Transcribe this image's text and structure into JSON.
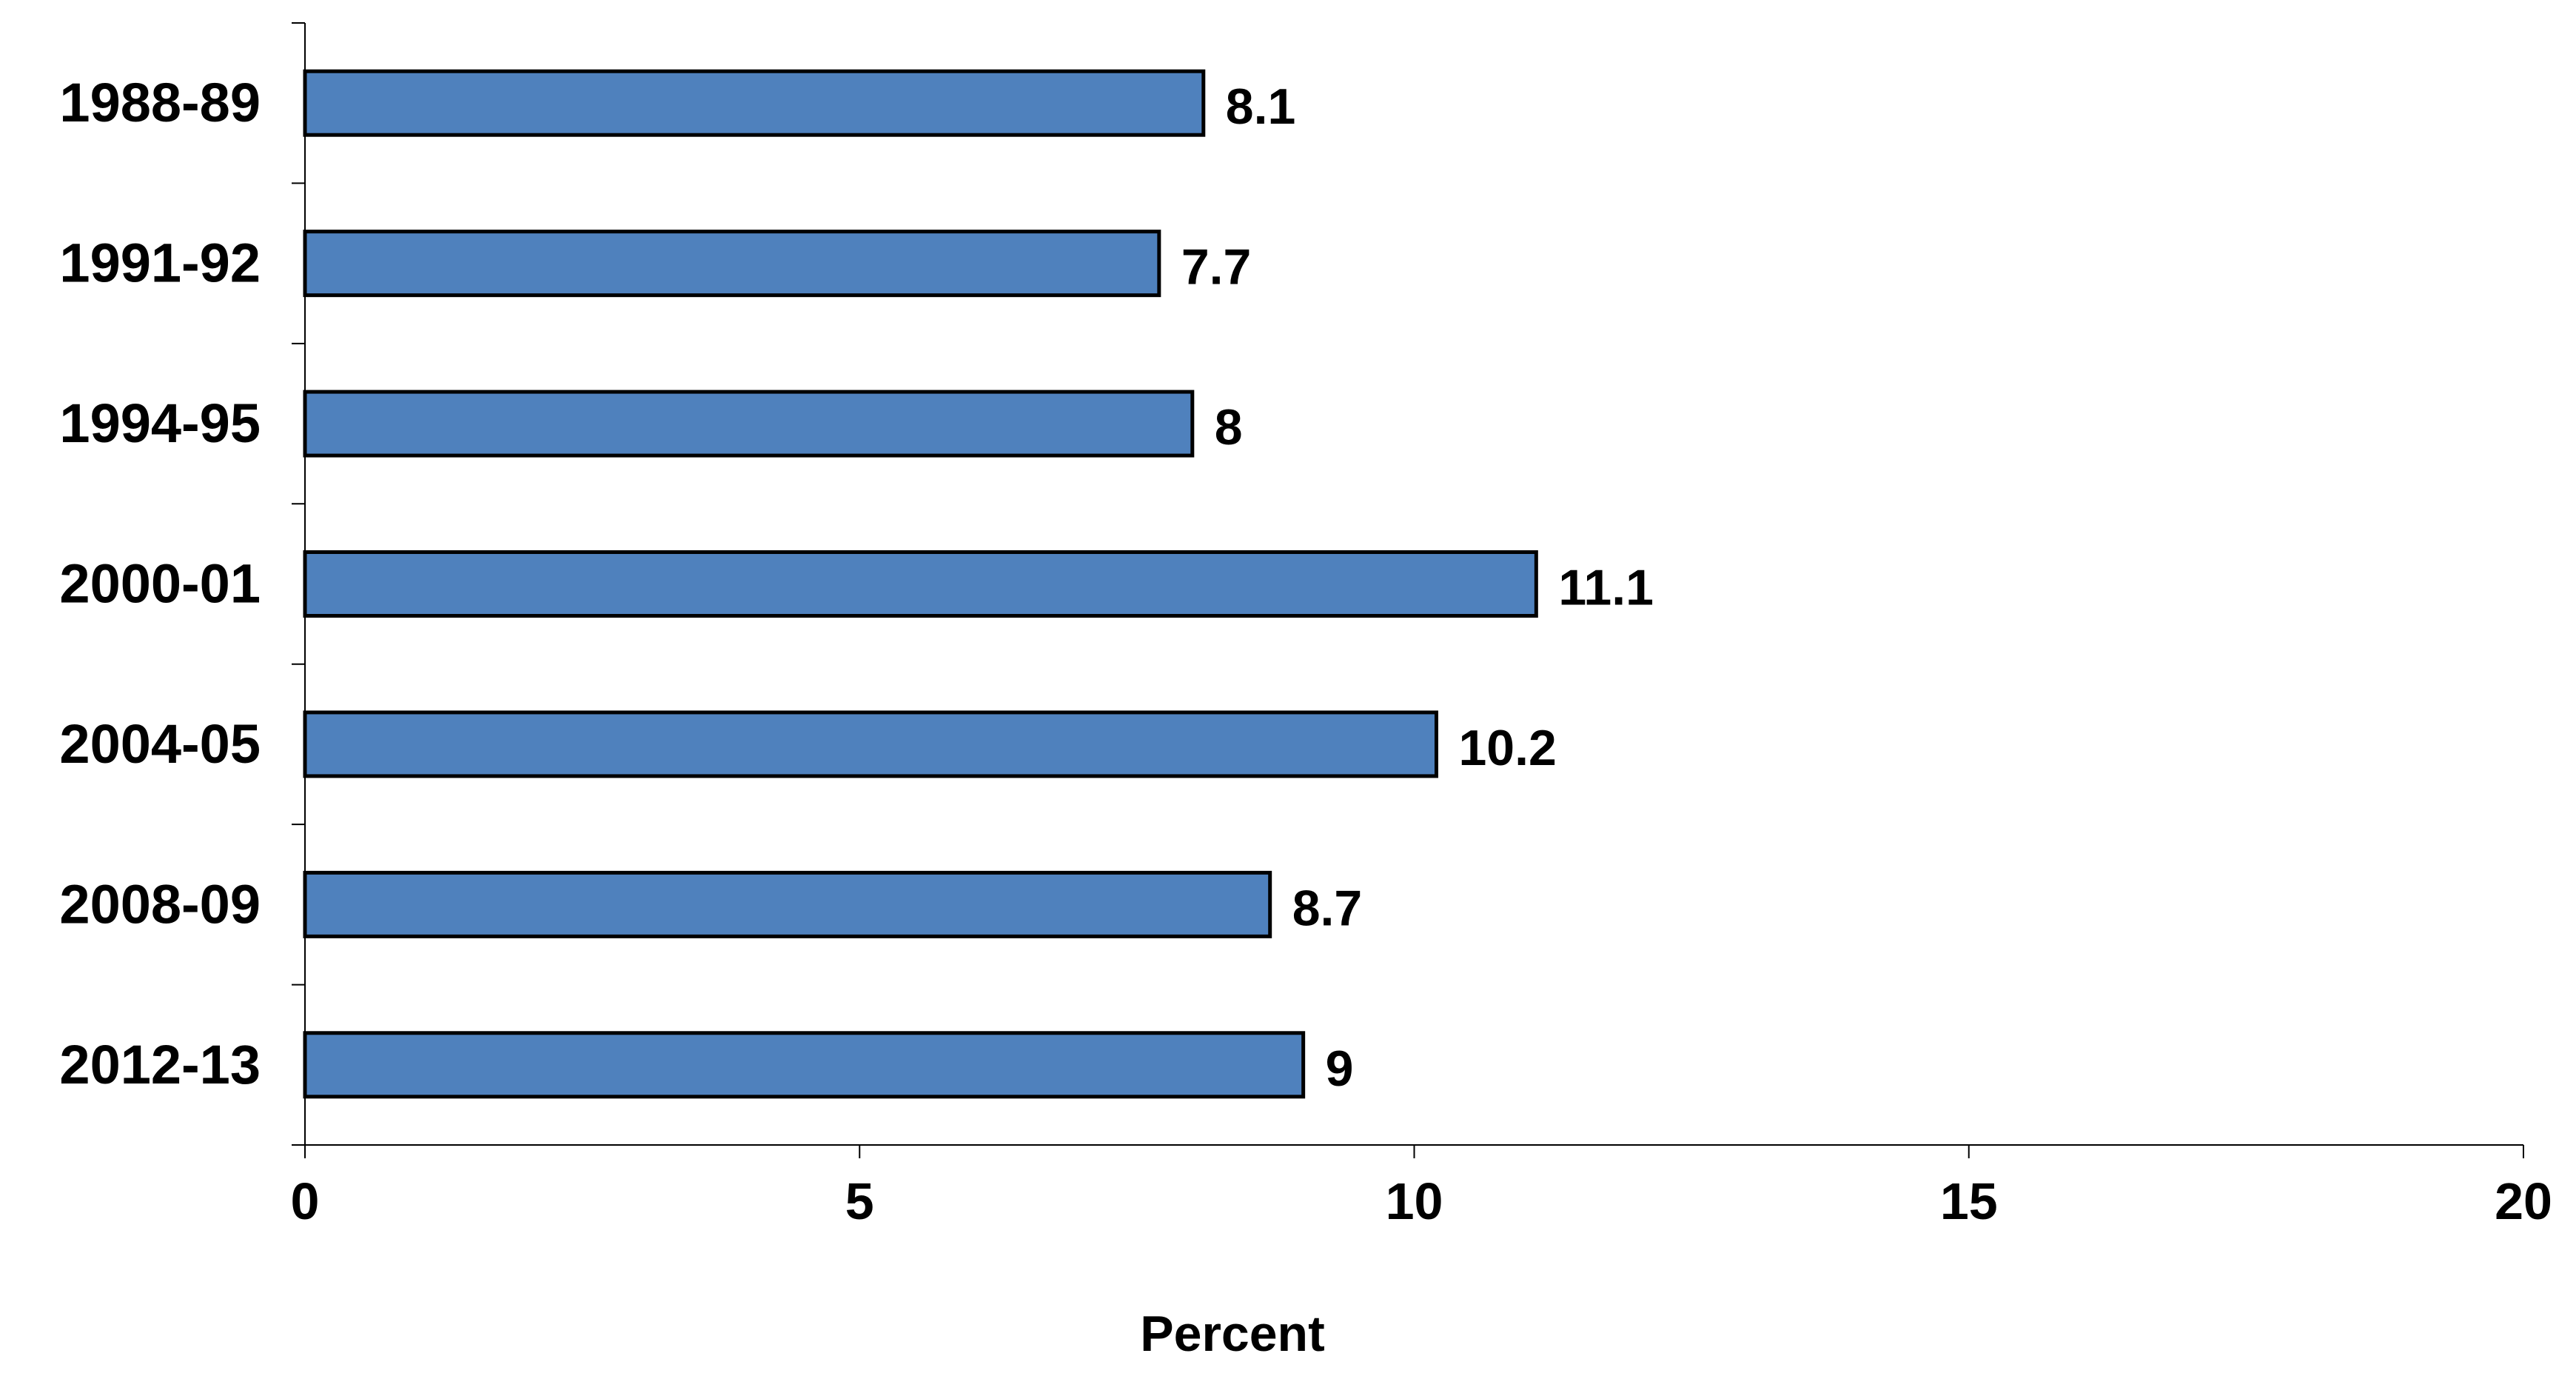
{
  "chart_data": {
    "type": "bar",
    "orientation": "horizontal",
    "categories": [
      "1988-89",
      "1991-92",
      "1994-95",
      "2000-01",
      "2004-05",
      "2008-09",
      "2012-13"
    ],
    "values": [
      8.1,
      7.7,
      8,
      11.1,
      10.2,
      8.7,
      9
    ],
    "data_labels": [
      "8.1",
      "7.7",
      "8",
      "11.1",
      "10.2",
      "8.7",
      "9"
    ],
    "xlabel": "Percent",
    "ylabel": "",
    "xlim": [
      0,
      20
    ],
    "x_ticks": [
      0,
      5,
      10,
      15,
      20
    ],
    "x_tick_labels": [
      "0",
      "5",
      "10",
      "15",
      "20"
    ],
    "grid": false,
    "legend": "none",
    "colors": {
      "bar_fill": "#4F81BD",
      "bar_stroke": "#000000",
      "axis": "#000000",
      "text": "#000000"
    }
  }
}
